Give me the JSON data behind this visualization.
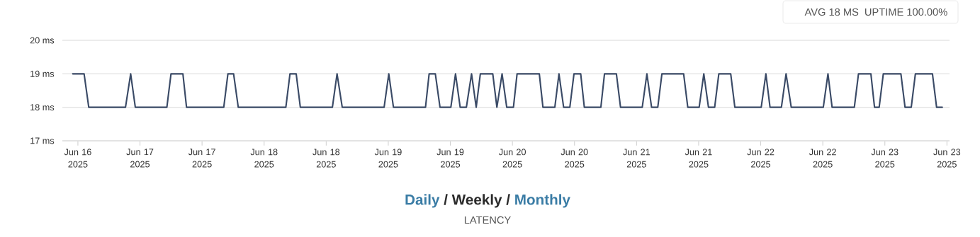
{
  "chart_data": {
    "type": "line",
    "xlabel": "LATENCY",
    "annotations": [
      "AVG 18 MS",
      "UPTIME 100.00%",
      "Daily",
      "/ Weekly /",
      "Monthly"
    ],
    "x": [
      "2025-06-16T17:00",
      "2025-06-16T19:12",
      "2025-06-16T20:06",
      "2025-06-17T03:12",
      "2025-06-17T04:12",
      "2025-06-17T05:06",
      "2025-06-17T11:12",
      "2025-06-17T12:00",
      "2025-06-17T14:18",
      "2025-06-17T15:00",
      "2025-06-17T22:12",
      "2025-06-17T23:00",
      "2025-06-18T00:06",
      "2025-06-18T01:00",
      "2025-06-18T10:12",
      "2025-06-18T11:00",
      "2025-06-18T12:12",
      "2025-06-18T13:00",
      "2025-06-18T19:12",
      "2025-06-18T20:06",
      "2025-06-18T21:06",
      "2025-06-19T05:12",
      "2025-06-19T06:06",
      "2025-06-19T07:00",
      "2025-06-19T13:12",
      "2025-06-19T13:54",
      "2025-06-19T15:06",
      "2025-06-19T16:00",
      "2025-06-19T18:06",
      "2025-06-19T19:00",
      "2025-06-19T19:54",
      "2025-06-19T21:06",
      "2025-06-19T22:06",
      "2025-06-19T23:00",
      "2025-06-19T23:48",
      "2025-06-20T02:12",
      "2025-06-20T03:00",
      "2025-06-20T04:00",
      "2025-06-20T04:54",
      "2025-06-20T06:12",
      "2025-06-20T06:54",
      "2025-06-20T11:12",
      "2025-06-20T11:54",
      "2025-06-20T14:12",
      "2025-06-20T15:00",
      "2025-06-20T15:54",
      "2025-06-20T17:06",
      "2025-06-20T17:54",
      "2025-06-20T19:12",
      "2025-06-20T19:54",
      "2025-06-20T23:06",
      "2025-06-20T23:48",
      "2025-06-21T02:06",
      "2025-06-21T02:54",
      "2025-06-21T07:06",
      "2025-06-21T08:00",
      "2025-06-21T08:54",
      "2025-06-21T10:06",
      "2025-06-21T10:54",
      "2025-06-21T15:06",
      "2025-06-21T15:54",
      "2025-06-21T18:06",
      "2025-06-21T19:00",
      "2025-06-21T19:54",
      "2025-06-21T21:06",
      "2025-06-21T21:54",
      "2025-06-22T00:12",
      "2025-06-22T01:00",
      "2025-06-22T06:06",
      "2025-06-22T07:00",
      "2025-06-22T07:48",
      "2025-06-22T10:00",
      "2025-06-22T10:54",
      "2025-06-22T11:54",
      "2025-06-22T18:06",
      "2025-06-22T19:00",
      "2025-06-22T19:48",
      "2025-06-23T00:06",
      "2025-06-23T00:54",
      "2025-06-23T03:18",
      "2025-06-23T04:00",
      "2025-06-23T04:54",
      "2025-06-23T05:42",
      "2025-06-23T09:06",
      "2025-06-23T09:54",
      "2025-06-23T11:06",
      "2025-06-23T11:54",
      "2025-06-23T15:12",
      "2025-06-23T16:00",
      "2025-06-23T17:06"
    ],
    "series": [
      {
        "color": "#3a4a66",
        "values": [
          19,
          19,
          18,
          18,
          19,
          18,
          18,
          19,
          19,
          18,
          18,
          19,
          19,
          18,
          18,
          19,
          19,
          18,
          18,
          19,
          18,
          18,
          19,
          18,
          18,
          19,
          19,
          18,
          18,
          19,
          18,
          18,
          19,
          18,
          19,
          19,
          18,
          19,
          18,
          18,
          19,
          19,
          18,
          18,
          19,
          18,
          18,
          19,
          19,
          18,
          18,
          19,
          19,
          18,
          18,
          19,
          18,
          18,
          19,
          19,
          18,
          18,
          19,
          18,
          18,
          19,
          19,
          18,
          18,
          19,
          18,
          18,
          19,
          18,
          18,
          19,
          18,
          18,
          19,
          19,
          18,
          18,
          19,
          19,
          18,
          18,
          19,
          19,
          18,
          18
        ]
      }
    ],
    "xlim": [
      "2025-06-16T15:00",
      "2025-06-23T18:30"
    ],
    "ylim": [
      17,
      20
    ],
    "xticks": [
      {
        "value": "2025-06-16T18:00",
        "label": "Jun 16 2025"
      },
      {
        "value": "2025-06-17T06:00",
        "label": "Jun 17 2025"
      },
      {
        "value": "2025-06-17T18:00",
        "label": "Jun 17 2025"
      },
      {
        "value": "2025-06-18T06:00",
        "label": "Jun 18 2025"
      },
      {
        "value": "2025-06-18T18:00",
        "label": "Jun 18 2025"
      },
      {
        "value": "2025-06-19T06:00",
        "label": "Jun 19 2025"
      },
      {
        "value": "2025-06-19T18:00",
        "label": "Jun 19 2025"
      },
      {
        "value": "2025-06-20T06:00",
        "label": "Jun 20 2025"
      },
      {
        "value": "2025-06-20T18:00",
        "label": "Jun 20 2025"
      },
      {
        "value": "2025-06-21T06:00",
        "label": "Jun 21 2025"
      },
      {
        "value": "2025-06-21T18:00",
        "label": "Jun 21 2025"
      },
      {
        "value": "2025-06-22T06:00",
        "label": "Jun 22 2025"
      },
      {
        "value": "2025-06-22T18:00",
        "label": "Jun 22 2025"
      },
      {
        "value": "2025-06-23T06:00",
        "label": "Jun 23 2025"
      },
      {
        "value": "2025-06-23T18:00",
        "label": "Jun 23 2025"
      }
    ],
    "yticks": [
      {
        "value": 17,
        "label": "17 ms"
      },
      {
        "value": 18,
        "label": "18 ms"
      },
      {
        "value": 19,
        "label": "19 ms"
      },
      {
        "value": 20,
        "label": "20 ms"
      }
    ],
    "grid": "y",
    "legend": false,
    "marker": "none",
    "line_style": "solid"
  }
}
